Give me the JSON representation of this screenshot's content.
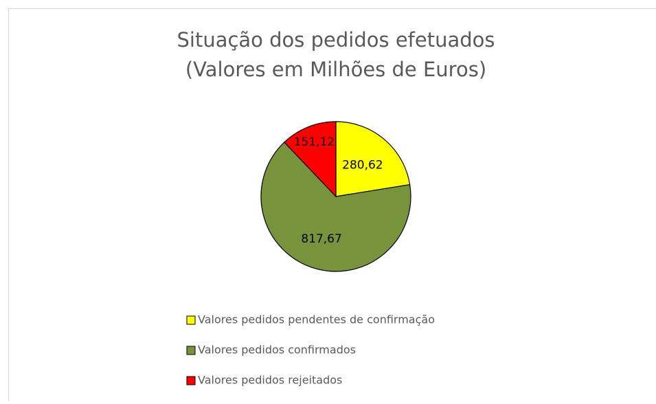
{
  "chart_data": {
    "type": "pie",
    "title": "Situação dos pedidos efetuados",
    "subtitle": "(Valores em Milhões de Euros)",
    "categories": [
      "Valores pedidos pendentes de confirmação",
      "Valores pedidos confirmados",
      "Valores pedidos rejeitados"
    ],
    "values": [
      280.62,
      817.67,
      151.12
    ],
    "value_labels": [
      "280,62",
      "817,67",
      "151,12"
    ],
    "colors": [
      "#ffff00",
      "#77933c",
      "#ff0000"
    ],
    "legend": "bottom"
  }
}
